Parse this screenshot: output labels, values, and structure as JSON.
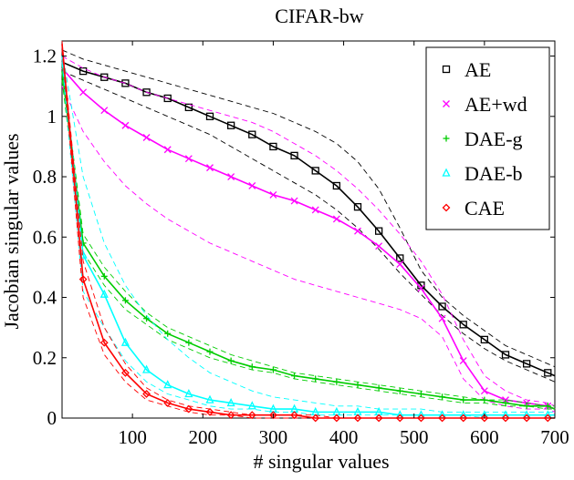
{
  "chart_data": {
    "type": "line",
    "title": "CIFAR-bw",
    "xlabel": "# singular values",
    "ylabel": "Jacobian singular values",
    "xlim": [
      0,
      700
    ],
    "ylim": [
      0,
      1.25
    ],
    "xticks": [
      100,
      200,
      300,
      400,
      500,
      600,
      700
    ],
    "yticks": [
      0,
      0.2,
      0.4,
      0.6,
      0.8,
      1,
      1.2
    ],
    "xtick_labels": [
      "100",
      "200",
      "300",
      "400",
      "500",
      "600",
      "700"
    ],
    "ytick_labels": [
      "0",
      "0.2",
      "0.4",
      "0.6",
      "0.8",
      "1",
      "1.2"
    ],
    "grid": false,
    "legend_position": "top-right",
    "series": [
      {
        "name": "AE",
        "color": "#000000",
        "marker": "square",
        "x": [
          0,
          30,
          60,
          90,
          120,
          150,
          180,
          210,
          240,
          270,
          300,
          330,
          360,
          390,
          420,
          450,
          480,
          510,
          540,
          570,
          600,
          630,
          660,
          690,
          700
        ],
        "y": [
          1.18,
          1.15,
          1.13,
          1.11,
          1.08,
          1.06,
          1.03,
          1.0,
          0.97,
          0.94,
          0.9,
          0.87,
          0.82,
          0.77,
          0.7,
          0.62,
          0.53,
          0.44,
          0.37,
          0.31,
          0.26,
          0.21,
          0.18,
          0.15,
          0.14
        ],
        "band_upper": [
          1.22,
          1.19,
          1.17,
          1.15,
          1.13,
          1.11,
          1.09,
          1.07,
          1.05,
          1.03,
          1.01,
          0.98,
          0.95,
          0.91,
          0.85,
          0.76,
          0.63,
          0.49,
          0.4,
          0.34,
          0.29,
          0.24,
          0.21,
          0.18,
          0.17
        ],
        "band_lower": [
          1.15,
          1.12,
          1.09,
          1.06,
          1.03,
          1.0,
          0.97,
          0.94,
          0.9,
          0.86,
          0.82,
          0.78,
          0.74,
          0.69,
          0.63,
          0.56,
          0.48,
          0.41,
          0.34,
          0.28,
          0.23,
          0.19,
          0.16,
          0.13,
          0.12
        ]
      },
      {
        "name": "AE+wd",
        "color": "#ff00ff",
        "marker": "x",
        "x": [
          0,
          30,
          60,
          90,
          120,
          150,
          180,
          210,
          240,
          270,
          300,
          330,
          360,
          390,
          420,
          450,
          480,
          510,
          540,
          570,
          600,
          630,
          660,
          690,
          700
        ],
        "y": [
          1.16,
          1.08,
          1.02,
          0.97,
          0.93,
          0.89,
          0.86,
          0.83,
          0.8,
          0.77,
          0.74,
          0.72,
          0.69,
          0.66,
          0.62,
          0.57,
          0.51,
          0.43,
          0.33,
          0.19,
          0.09,
          0.06,
          0.05,
          0.04,
          0.03
        ],
        "band_upper": [
          1.2,
          1.16,
          1.13,
          1.11,
          1.08,
          1.06,
          1.04,
          1.02,
          1.0,
          0.98,
          0.95,
          0.91,
          0.87,
          0.82,
          0.76,
          0.69,
          0.61,
          0.52,
          0.41,
          0.26,
          0.14,
          0.09,
          0.06,
          0.05,
          0.04
        ],
        "band_lower": [
          1.1,
          0.95,
          0.85,
          0.77,
          0.71,
          0.66,
          0.62,
          0.58,
          0.55,
          0.52,
          0.49,
          0.46,
          0.44,
          0.42,
          0.4,
          0.38,
          0.36,
          0.33,
          0.27,
          0.13,
          0.06,
          0.04,
          0.03,
          0.03,
          0.02
        ]
      },
      {
        "name": "DAE-g",
        "color": "#00cc00",
        "marker": "plus",
        "x": [
          0,
          30,
          60,
          90,
          120,
          150,
          180,
          210,
          240,
          270,
          300,
          330,
          360,
          390,
          420,
          450,
          480,
          510,
          540,
          570,
          600,
          630,
          660,
          690,
          700
        ],
        "y": [
          1.15,
          0.58,
          0.47,
          0.39,
          0.33,
          0.28,
          0.25,
          0.22,
          0.19,
          0.17,
          0.16,
          0.14,
          0.13,
          0.12,
          0.11,
          0.1,
          0.09,
          0.08,
          0.07,
          0.06,
          0.06,
          0.05,
          0.04,
          0.04,
          0.03
        ],
        "band_upper": [
          1.17,
          0.61,
          0.5,
          0.42,
          0.35,
          0.3,
          0.27,
          0.24,
          0.21,
          0.19,
          0.17,
          0.15,
          0.14,
          0.13,
          0.12,
          0.11,
          0.1,
          0.09,
          0.08,
          0.07,
          0.06,
          0.06,
          0.05,
          0.04,
          0.04
        ],
        "band_lower": [
          1.12,
          0.55,
          0.44,
          0.36,
          0.31,
          0.26,
          0.23,
          0.2,
          0.18,
          0.16,
          0.15,
          0.13,
          0.12,
          0.11,
          0.1,
          0.09,
          0.08,
          0.07,
          0.06,
          0.05,
          0.05,
          0.04,
          0.04,
          0.03,
          0.03
        ]
      },
      {
        "name": "DAE-b",
        "color": "#00ffff",
        "marker": "triangle",
        "x": [
          0,
          30,
          60,
          90,
          120,
          150,
          180,
          210,
          240,
          270,
          300,
          330,
          360,
          390,
          420,
          450,
          480,
          510,
          540,
          570,
          600,
          630,
          660,
          690,
          700
        ],
        "y": [
          1.2,
          0.54,
          0.41,
          0.25,
          0.16,
          0.11,
          0.08,
          0.06,
          0.05,
          0.04,
          0.03,
          0.03,
          0.02,
          0.02,
          0.02,
          0.02,
          0.01,
          0.01,
          0.01,
          0.01,
          0.01,
          0.01,
          0.01,
          0.01,
          0.01
        ],
        "band_upper": [
          1.22,
          0.8,
          0.58,
          0.44,
          0.34,
          0.26,
          0.2,
          0.15,
          0.12,
          0.09,
          0.07,
          0.06,
          0.05,
          0.04,
          0.04,
          0.03,
          0.03,
          0.03,
          0.02,
          0.02,
          0.02,
          0.02,
          0.02,
          0.02,
          0.02
        ],
        "band_lower": [
          1.18,
          0.42,
          0.3,
          0.19,
          0.12,
          0.08,
          0.06,
          0.04,
          0.03,
          0.03,
          0.02,
          0.02,
          0.01,
          0.01,
          0.01,
          0.01,
          0.01,
          0.01,
          0.01,
          0.01,
          0.0,
          0.0,
          0.0,
          0.0,
          0.0
        ]
      },
      {
        "name": "CAE",
        "color": "#ff0000",
        "marker": "diamond",
        "x": [
          0,
          30,
          60,
          90,
          120,
          150,
          180,
          210,
          240,
          270,
          300,
          330,
          360,
          390,
          420,
          450,
          480,
          510,
          540,
          570,
          600,
          630,
          660,
          690,
          700
        ],
        "y": [
          1.24,
          0.46,
          0.25,
          0.15,
          0.08,
          0.05,
          0.03,
          0.02,
          0.01,
          0.01,
          0.01,
          0.01,
          0.0,
          0.0,
          0.0,
          0.0,
          0.0,
          0.0,
          0.0,
          0.0,
          0.0,
          0.0,
          0.0,
          0.0,
          0.0
        ],
        "band_upper": [
          1.25,
          0.52,
          0.3,
          0.18,
          0.1,
          0.06,
          0.04,
          0.03,
          0.02,
          0.01,
          0.01,
          0.01,
          0.01,
          0.0,
          0.0,
          0.0,
          0.0,
          0.0,
          0.0,
          0.0,
          0.0,
          0.0,
          0.0,
          0.0,
          0.0
        ],
        "band_lower": [
          1.22,
          0.4,
          0.21,
          0.12,
          0.06,
          0.04,
          0.02,
          0.01,
          0.01,
          0.0,
          0.0,
          0.0,
          0.0,
          0.0,
          0.0,
          0.0,
          0.0,
          0.0,
          0.0,
          0.0,
          0.0,
          0.0,
          0.0,
          0.0,
          0.0
        ]
      }
    ]
  }
}
